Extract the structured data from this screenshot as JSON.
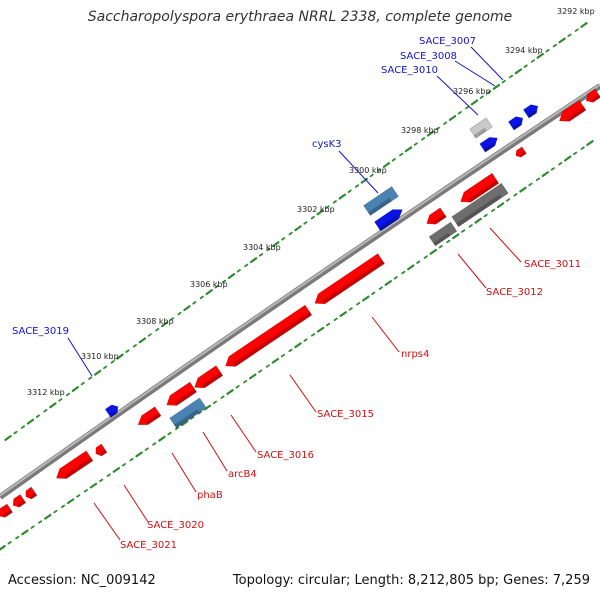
{
  "header": {
    "title": "Saccharopolyspora erythraea NRRL 2338, complete genome"
  },
  "footer": {
    "accession": "Accession: NC_009142",
    "summary": "Topology: circular; Length: 8,212,805 bp; Genes: 7,259"
  },
  "kbp_ticks": [
    "3292 kbp",
    "3294 kbp",
    "3296 kbp",
    "3298 kbp",
    "3300 kbp",
    "3302 kbp",
    "3304 kbp",
    "3306 kbp",
    "3308 kbp",
    "3310 kbp",
    "3312 kbp"
  ],
  "forward_gene_labels": [
    "SACE_3007",
    "SACE_3008",
    "SACE_3010",
    "cysK3",
    "SACE_3019"
  ],
  "reverse_gene_labels": [
    "SACE_3011",
    "SACE_3012",
    "nrps4",
    "SACE_3015",
    "SACE_3016",
    "arcB4",
    "phaB",
    "SACE_3020",
    "SACE_3021"
  ],
  "colors": {
    "backbone": "#8c8c8c",
    "tick_dots": "#2e8b2e",
    "forward_gene": "#0a14e6",
    "reverse_gene": "#ff0000",
    "pseudo_gene": "#6e6e6e",
    "rna_gene": "#4a82b4",
    "forward_label": "#1414c8",
    "reverse_label": "#cc1111"
  }
}
